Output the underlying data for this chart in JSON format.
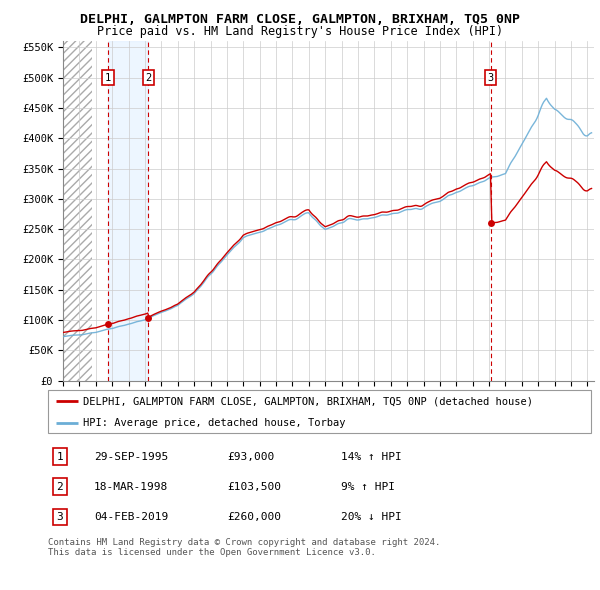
{
  "title": "DELPHI, GALMPTON FARM CLOSE, GALMPTON, BRIXHAM, TQ5 0NP",
  "subtitle": "Price paid vs. HM Land Registry's House Price Index (HPI)",
  "ylim": [
    0,
    560000
  ],
  "yticks": [
    0,
    50000,
    100000,
    150000,
    200000,
    250000,
    300000,
    350000,
    400000,
    450000,
    500000,
    550000
  ],
  "ytick_labels": [
    "£0",
    "£50K",
    "£100K",
    "£150K",
    "£200K",
    "£250K",
    "£300K",
    "£350K",
    "£400K",
    "£450K",
    "£500K",
    "£550K"
  ],
  "hpi_color": "#6baed6",
  "price_color": "#cc0000",
  "vline_color": "#cc0000",
  "marker_color": "#cc0000",
  "grid_color": "#cccccc",
  "shade_color": "#ddeeff",
  "transaction_years": [
    1995.747,
    1998.206,
    2019.089
  ],
  "transaction_prices": [
    93000,
    103500,
    260000
  ],
  "transaction_labels": [
    "1",
    "2",
    "3"
  ],
  "legend_label_red": "DELPHI, GALMPTON FARM CLOSE, GALMPTON, BRIXHAM, TQ5 0NP (detached house)",
  "legend_label_blue": "HPI: Average price, detached house, Torbay",
  "table_rows": [
    [
      "1",
      "29-SEP-1995",
      "£93,000",
      "14% ↑ HPI"
    ],
    [
      "2",
      "18-MAR-1998",
      "£103,500",
      "9% ↑ HPI"
    ],
    [
      "3",
      "04-FEB-2019",
      "£260,000",
      "20% ↓ HPI"
    ]
  ],
  "footnote": "Contains HM Land Registry data © Crown copyright and database right 2024.\nThis data is licensed under the Open Government Licence v3.0.",
  "title_fontsize": 9.5,
  "subtitle_fontsize": 8.5,
  "tick_fontsize": 7.5,
  "legend_fontsize": 7.5,
  "table_fontsize": 8,
  "footnote_fontsize": 6.5
}
